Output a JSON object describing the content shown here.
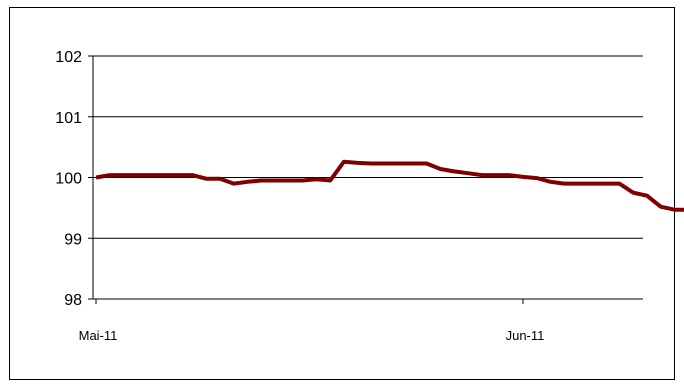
{
  "chart_data": {
    "type": "line",
    "title": "",
    "xlabel": "",
    "ylabel": "",
    "ylim": [
      98,
      102
    ],
    "yticks": [
      98,
      99,
      100,
      101,
      102
    ],
    "ytick_labels": [
      "98",
      "99",
      "100",
      "101",
      "102"
    ],
    "xtick_labels": [
      {
        "label": "Mai-11",
        "index": 0
      },
      {
        "label": "Jun-11",
        "index": 31
      }
    ],
    "grid": true,
    "series": [
      {
        "color": "#800000",
        "values": [
          100.0,
          100.04,
          100.04,
          100.04,
          100.04,
          100.04,
          100.04,
          100.04,
          99.98,
          99.98,
          99.9,
          99.93,
          99.95,
          99.95,
          99.95,
          99.95,
          99.97,
          99.95,
          100.26,
          100.24,
          100.23,
          100.23,
          100.23,
          100.23,
          100.23,
          100.14,
          100.1,
          100.07,
          100.04,
          100.04,
          100.04,
          100.01,
          99.99,
          99.93,
          99.9,
          99.9,
          99.9,
          99.9,
          99.9,
          99.75,
          99.7,
          99.52,
          99.47,
          99.47
        ]
      }
    ]
  }
}
